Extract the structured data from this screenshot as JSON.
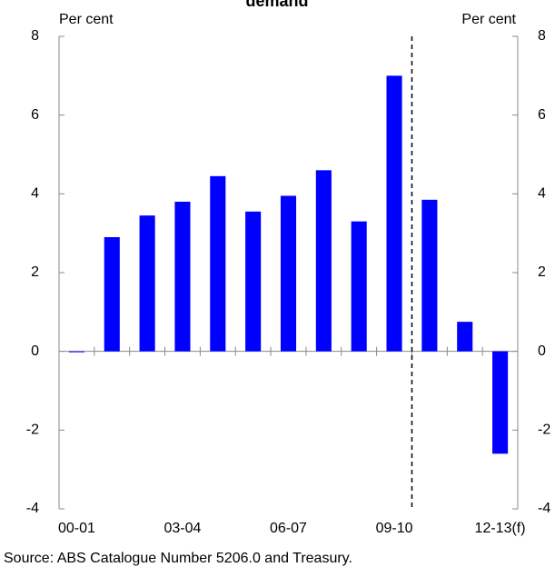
{
  "chart_data": {
    "type": "bar",
    "title": "demand",
    "y_label": "Per cent",
    "y2_label": "Per cent",
    "categories": [
      "00-01",
      null,
      null,
      "03-04",
      null,
      null,
      "06-07",
      null,
      null,
      "09-10",
      null,
      null,
      "12-13(f)"
    ],
    "values": [
      0,
      2.9,
      3.45,
      3.8,
      4.45,
      3.55,
      3.95,
      4.6,
      3.3,
      7.0,
      3.85,
      0.75,
      -2.6
    ],
    "color": "#0000ff",
    "ylim": [
      -4,
      8
    ],
    "yticks": [
      -4,
      -2,
      0,
      2,
      4,
      6,
      8
    ],
    "y2lim": [
      -4,
      8
    ],
    "y2ticks": [
      -4,
      -2,
      0,
      2,
      4,
      6,
      8
    ],
    "grid": false,
    "source": "Source:  ABS Catalogue Number 5206.0 and Treasury."
  }
}
